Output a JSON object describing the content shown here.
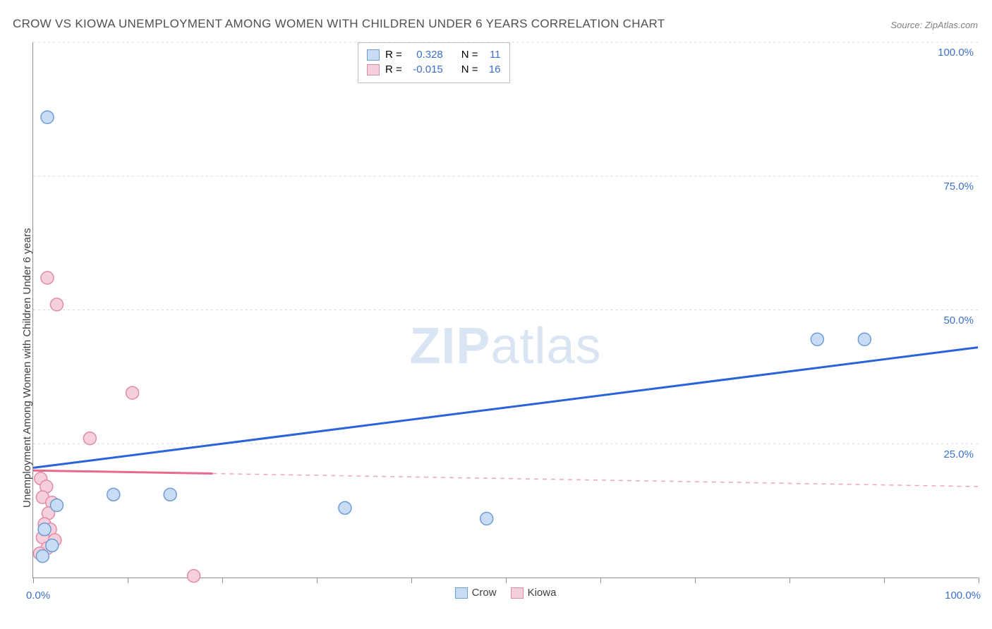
{
  "title": "CROW VS KIOWA UNEMPLOYMENT AMONG WOMEN WITH CHILDREN UNDER 6 YEARS CORRELATION CHART",
  "source_label": "Source: ZipAtlas.com",
  "watermark_zip": "ZIP",
  "watermark_atlas": "atlas",
  "y_axis_label": "Unemployment Among Women with Children Under 6 years",
  "chart": {
    "type": "scatter-correlation",
    "plot_bg": "#ffffff",
    "grid_color": "#d8d8d8",
    "axis_color": "#909090",
    "xlim": [
      0,
      100
    ],
    "ylim": [
      0,
      100
    ],
    "y_ticks": [
      {
        "v": 25,
        "label": "25.0%"
      },
      {
        "v": 50,
        "label": "50.0%"
      },
      {
        "v": 75,
        "label": "75.0%"
      },
      {
        "v": 100,
        "label": "100.0%"
      }
    ],
    "x_tick_positions": [
      0,
      10,
      20,
      30,
      40,
      50,
      60,
      70,
      80,
      90,
      100
    ],
    "x_origin_label": "0.0%",
    "x_end_label": "100.0%",
    "axis_label_color": "#3b6fc9",
    "axis_label_fontsize": 15,
    "series": {
      "crow": {
        "label": "Crow",
        "fill": "#c8ddf4",
        "stroke": "#6b9cd6",
        "marker_r": 9,
        "stats_R": "0.328",
        "stats_N": "11",
        "line": {
          "color": "#2962d9",
          "width": 3,
          "x1": 0,
          "y1": 20.5,
          "x2": 100,
          "y2": 43,
          "solid_until_x": 100
        },
        "points": [
          {
            "x": 1.5,
            "y": 86
          },
          {
            "x": 33,
            "y": 13
          },
          {
            "x": 48,
            "y": 11
          },
          {
            "x": 83,
            "y": 44.5
          },
          {
            "x": 88,
            "y": 44.5
          },
          {
            "x": 2.5,
            "y": 13.5
          },
          {
            "x": 8.5,
            "y": 15.5
          },
          {
            "x": 14.5,
            "y": 15.5
          },
          {
            "x": 1.2,
            "y": 9
          },
          {
            "x": 2.0,
            "y": 6
          },
          {
            "x": 1.0,
            "y": 4
          }
        ]
      },
      "kiowa": {
        "label": "Kiowa",
        "fill": "#f5d0dc",
        "stroke": "#e28aa8",
        "marker_r": 9,
        "stats_R": "-0.015",
        "stats_N": "16",
        "line": {
          "color": "#e86a8e",
          "width": 3,
          "x1": 0,
          "y1": 20,
          "x2": 100,
          "y2": 17,
          "solid_until_x": 19
        },
        "points": [
          {
            "x": 1.5,
            "y": 56
          },
          {
            "x": 2.5,
            "y": 51
          },
          {
            "x": 10.5,
            "y": 34.5
          },
          {
            "x": 6,
            "y": 26
          },
          {
            "x": 0.8,
            "y": 18.5
          },
          {
            "x": 1.4,
            "y": 17
          },
          {
            "x": 1.0,
            "y": 15
          },
          {
            "x": 2.0,
            "y": 14
          },
          {
            "x": 1.6,
            "y": 12
          },
          {
            "x": 1.2,
            "y": 10
          },
          {
            "x": 1.8,
            "y": 9
          },
          {
            "x": 1.0,
            "y": 7.5
          },
          {
            "x": 2.3,
            "y": 7
          },
          {
            "x": 1.5,
            "y": 5.5
          },
          {
            "x": 0.7,
            "y": 4.5
          },
          {
            "x": 17,
            "y": 0.3
          }
        ]
      }
    },
    "stats_box": {
      "R_label": "R =",
      "N_label": "N =",
      "value_color": "#3b6fc9",
      "label_color": "#404040"
    }
  },
  "legend_bottom": {
    "crow": "Crow",
    "kiowa": "Kiowa"
  }
}
